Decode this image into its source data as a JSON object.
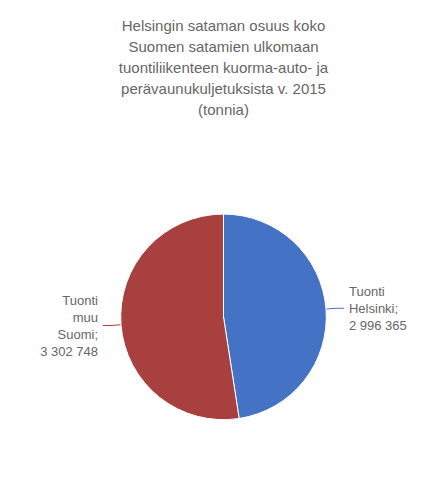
{
  "chart_data": {
    "type": "pie",
    "title": "Helsingin sataman osuus koko\nSuomen satamien ulkomaan\ntuontiliikenteen kuorma-auto- ja\nperävaunukuljetuksista v. 2015\n(tonnia)",
    "values": [
      2996365,
      3302748
    ],
    "value_labels": [
      "Tuonti\nHelsinki;\n2 996 365",
      "Tuonti\nmuu\nSuomi;\n3 302 748"
    ],
    "colors": [
      "#4472C4",
      "#A84040"
    ],
    "data_labels": true
  }
}
